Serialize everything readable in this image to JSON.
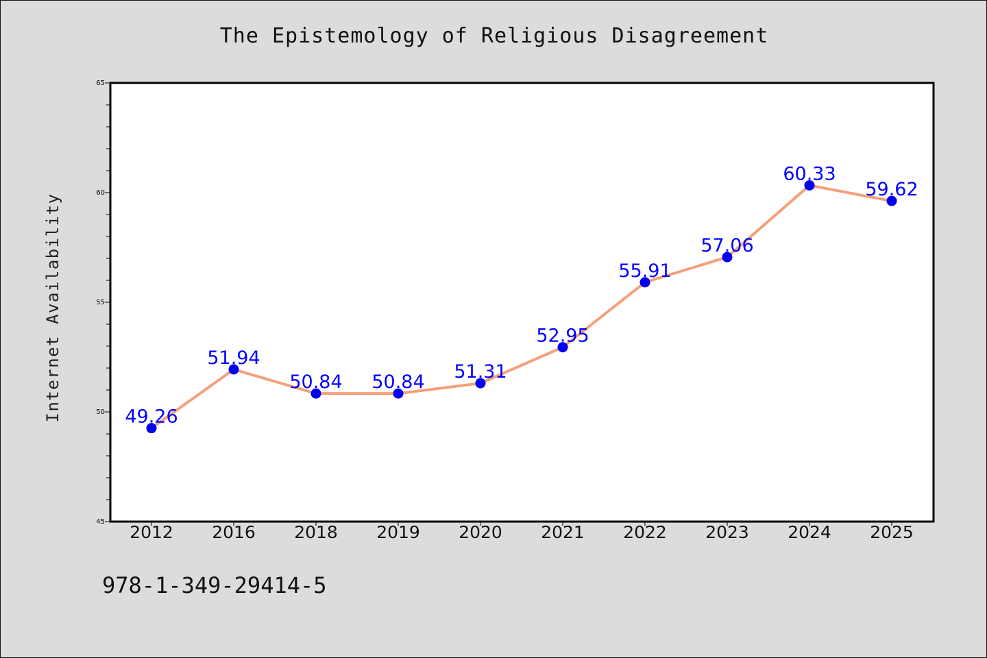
{
  "figure": {
    "footnote": "978-1-349-29414-5"
  },
  "chart_data": {
    "type": "line",
    "title": "The Epistemology of Religious Disagreement",
    "xlabel": "",
    "ylabel": "Internet Availability",
    "categories": [
      "2012",
      "2016",
      "2018",
      "2019",
      "2020",
      "2021",
      "2022",
      "2023",
      "2024",
      "2025"
    ],
    "series": [
      {
        "values": [
          49.26,
          51.94,
          50.84,
          50.84,
          51.31,
          52.95,
          55.91,
          57.06,
          60.33,
          59.62
        ],
        "labels": [
          "49.26",
          "51.94",
          "50.84",
          "50.84",
          "51.31",
          "52.95",
          "55.91",
          "57.06",
          "60.33",
          "59.62"
        ]
      }
    ],
    "ylim": [
      45,
      65
    ],
    "y_ticks": [
      45,
      50,
      55,
      60,
      65
    ],
    "y_minor_step": 1,
    "grid": false,
    "legend": "none",
    "colors": {
      "line": "#f4a07a",
      "marker": "#0000ee",
      "data_label": "#0000ff",
      "plot_background": "#ffffff",
      "figure_background": "#dcdcdc"
    }
  }
}
